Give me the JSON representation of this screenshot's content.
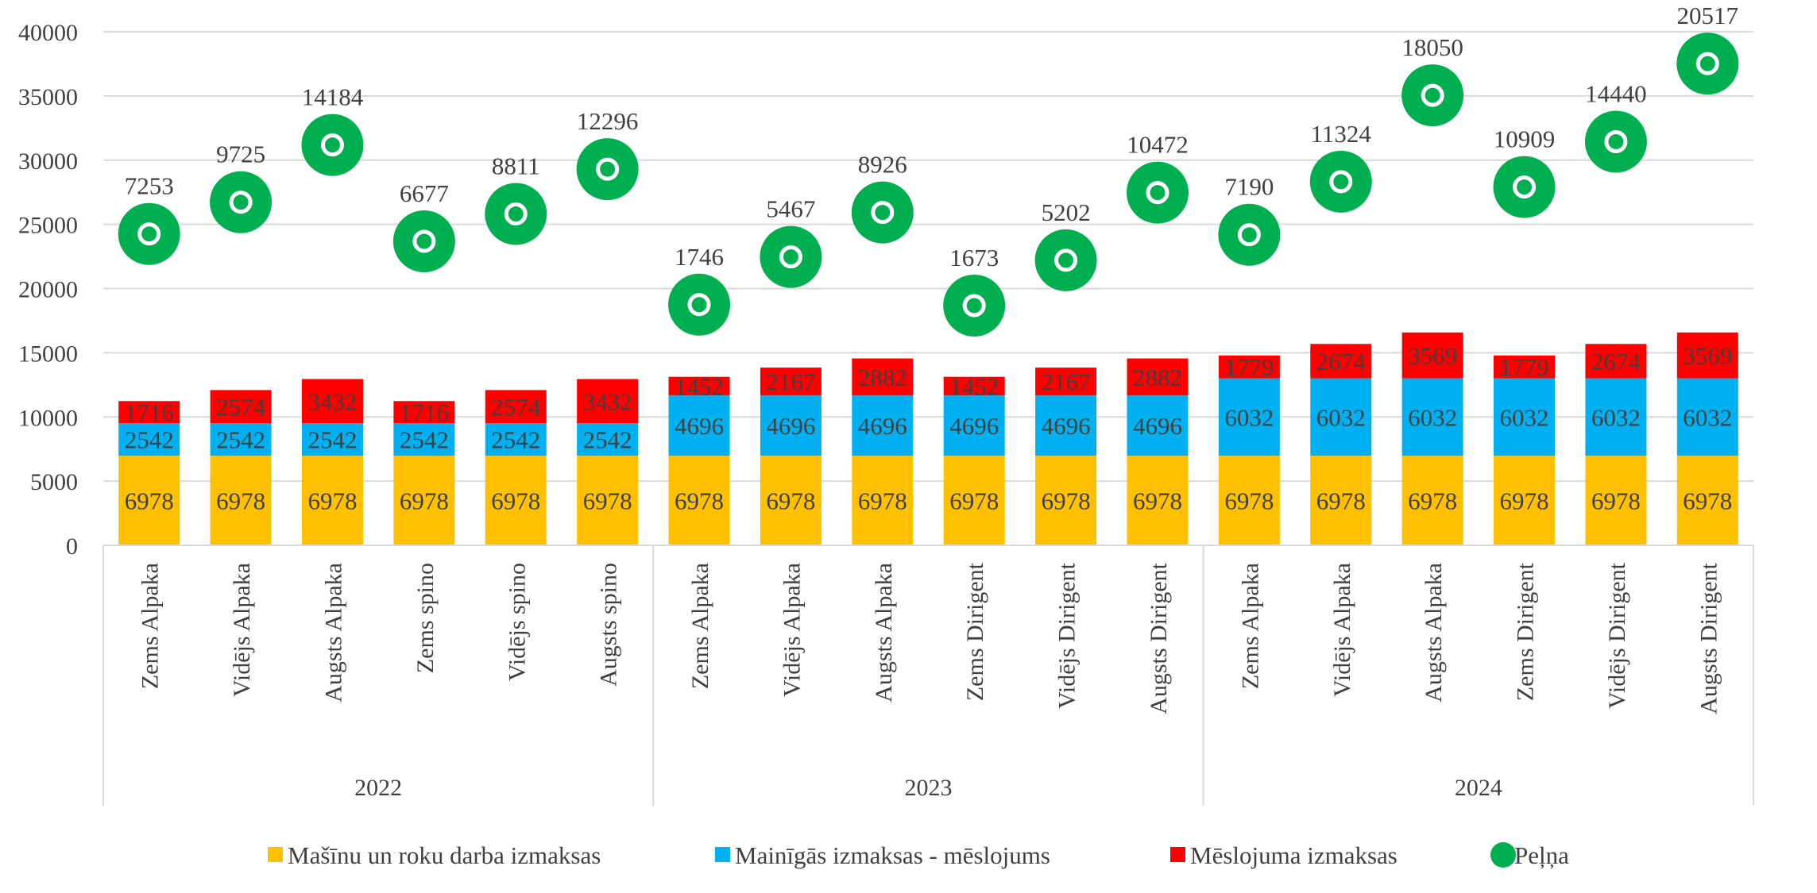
{
  "chart_data": {
    "type": "bar",
    "stacked": true,
    "categories": [
      "Zems Alpaka",
      "Vidējs Alpaka",
      "Augsts Alpaka",
      "Zems spino",
      "Vidējs spino",
      "Augsts spino",
      "Zems Alpaka",
      "Vidējs Alpaka",
      "Augsts Alpaka",
      "Zems Dirigent",
      "Vidējs Dirigent",
      "Augsts Dirigent",
      "Zems Alpaka",
      "Vidējs Alpaka",
      "Augsts Alpaka",
      "Zems Dirigent",
      "Vidējs Dirigent",
      "Augsts Dirigent"
    ],
    "groups": [
      {
        "label": "2022",
        "count": 6
      },
      {
        "label": "2023",
        "count": 6
      },
      {
        "label": "2024",
        "count": 6
      }
    ],
    "series": [
      {
        "name": "Mašīnu un roku darba izmaksas",
        "color": "#FFC000",
        "values": [
          6978,
          6978,
          6978,
          6978,
          6978,
          6978,
          6978,
          6978,
          6978,
          6978,
          6978,
          6978,
          6978,
          6978,
          6978,
          6978,
          6978,
          6978
        ]
      },
      {
        "name": "Mainīgās izmaksas - mēslojums",
        "color": "#00B0F0",
        "values": [
          2542,
          2542,
          2542,
          2542,
          2542,
          2542,
          4696,
          4696,
          4696,
          4696,
          4696,
          4696,
          6032,
          6032,
          6032,
          6032,
          6032,
          6032
        ]
      },
      {
        "name": "Mēslojuma izmaksas",
        "color": "#FF0000",
        "values": [
          1716,
          2574,
          3432,
          1716,
          2574,
          3432,
          1452,
          2167,
          2882,
          1452,
          2167,
          2882,
          1779,
          2674,
          3569,
          1779,
          2674,
          3569
        ]
      }
    ],
    "profit": {
      "name": "Peļņa",
      "color": "#00B050",
      "labels": [
        7253,
        9725,
        14184,
        6677,
        8811,
        12296,
        1746,
        5467,
        8926,
        1673,
        5202,
        10472,
        7190,
        11324,
        18050,
        10909,
        14440,
        20517
      ],
      "positions": [
        24253,
        26725,
        31184,
        23677,
        25811,
        29296,
        18746,
        22467,
        25926,
        18673,
        22202,
        27472,
        24190,
        28324,
        35050,
        27909,
        31440,
        37517
      ]
    },
    "ylim": [
      0,
      40000
    ],
    "yticks": [
      0,
      5000,
      10000,
      15000,
      20000,
      25000,
      30000,
      35000,
      40000
    ],
    "grid": true,
    "legend": "bottom",
    "title": "",
    "xlabel": "",
    "ylabel": ""
  }
}
